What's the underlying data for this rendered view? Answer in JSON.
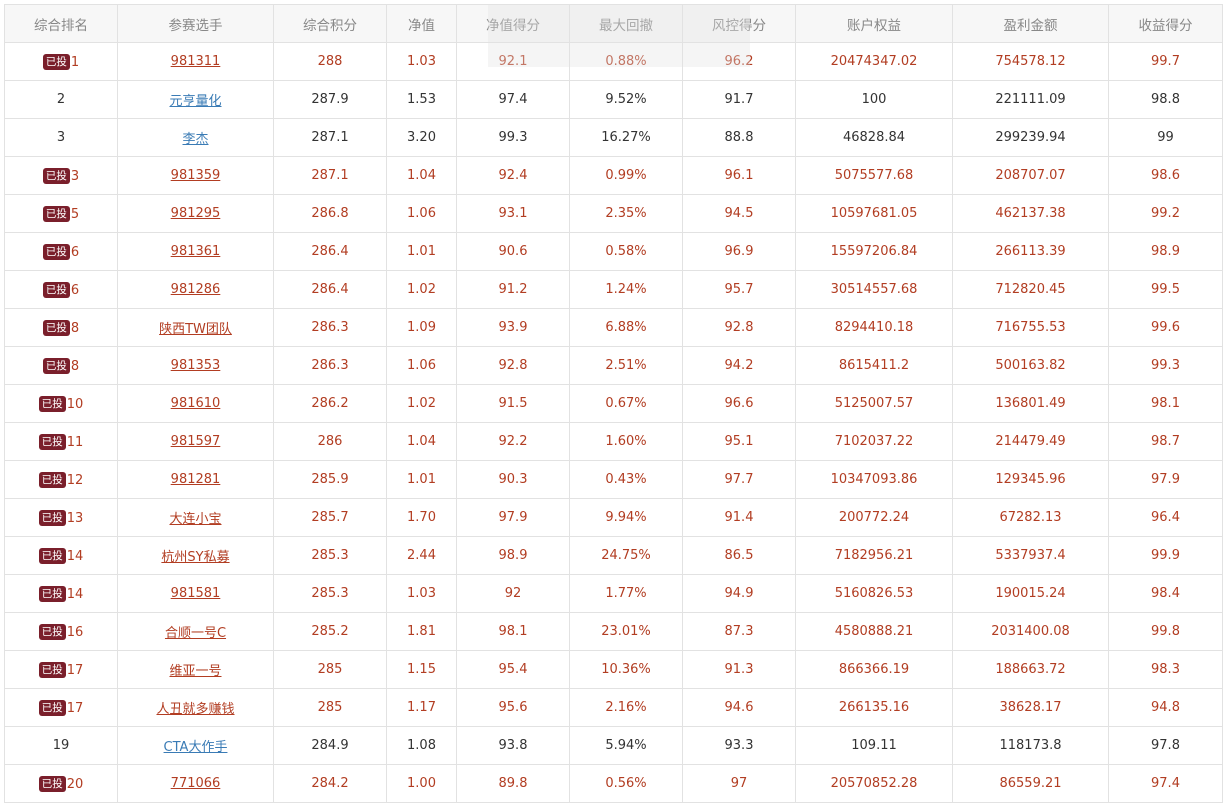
{
  "table": {
    "headers": [
      "综合排名",
      "参赛选手",
      "综合积分",
      "净值",
      "净值得分",
      "最大回撤",
      "风控得分",
      "账户权益",
      "盈利金额",
      "收益得分"
    ],
    "badge_label": "已投",
    "rows": [
      {
        "invested": true,
        "rank": "1",
        "player": "981311",
        "score": "288",
        "nav": "1.03",
        "nav_score": "92.1",
        "drawdown": "0.88%",
        "risk_score": "96.2",
        "equity": "20474347.02",
        "profit": "754578.12",
        "return_score": "99.7"
      },
      {
        "invested": false,
        "rank": "2",
        "player": "元亨量化",
        "score": "287.9",
        "nav": "1.53",
        "nav_score": "97.4",
        "drawdown": "9.52%",
        "risk_score": "91.7",
        "equity": "100",
        "profit": "221111.09",
        "return_score": "98.8"
      },
      {
        "invested": false,
        "rank": "3",
        "player": "李杰",
        "score": "287.1",
        "nav": "3.20",
        "nav_score": "99.3",
        "drawdown": "16.27%",
        "risk_score": "88.8",
        "equity": "46828.84",
        "profit": "299239.94",
        "return_score": "99"
      },
      {
        "invested": true,
        "rank": "3",
        "player": "981359",
        "score": "287.1",
        "nav": "1.04",
        "nav_score": "92.4",
        "drawdown": "0.99%",
        "risk_score": "96.1",
        "equity": "5075577.68",
        "profit": "208707.07",
        "return_score": "98.6"
      },
      {
        "invested": true,
        "rank": "5",
        "player": "981295",
        "score": "286.8",
        "nav": "1.06",
        "nav_score": "93.1",
        "drawdown": "2.35%",
        "risk_score": "94.5",
        "equity": "10597681.05",
        "profit": "462137.38",
        "return_score": "99.2"
      },
      {
        "invested": true,
        "rank": "6",
        "player": "981361",
        "score": "286.4",
        "nav": "1.01",
        "nav_score": "90.6",
        "drawdown": "0.58%",
        "risk_score": "96.9",
        "equity": "15597206.84",
        "profit": "266113.39",
        "return_score": "98.9"
      },
      {
        "invested": true,
        "rank": "6",
        "player": "981286",
        "score": "286.4",
        "nav": "1.02",
        "nav_score": "91.2",
        "drawdown": "1.24%",
        "risk_score": "95.7",
        "equity": "30514557.68",
        "profit": "712820.45",
        "return_score": "99.5"
      },
      {
        "invested": true,
        "rank": "8",
        "player": "陕西TW团队",
        "score": "286.3",
        "nav": "1.09",
        "nav_score": "93.9",
        "drawdown": "6.88%",
        "risk_score": "92.8",
        "equity": "8294410.18",
        "profit": "716755.53",
        "return_score": "99.6"
      },
      {
        "invested": true,
        "rank": "8",
        "player": "981353",
        "score": "286.3",
        "nav": "1.06",
        "nav_score": "92.8",
        "drawdown": "2.51%",
        "risk_score": "94.2",
        "equity": "8615411.2",
        "profit": "500163.82",
        "return_score": "99.3"
      },
      {
        "invested": true,
        "rank": "10",
        "player": "981610",
        "score": "286.2",
        "nav": "1.02",
        "nav_score": "91.5",
        "drawdown": "0.67%",
        "risk_score": "96.6",
        "equity": "5125007.57",
        "profit": "136801.49",
        "return_score": "98.1"
      },
      {
        "invested": true,
        "rank": "11",
        "player": "981597",
        "score": "286",
        "nav": "1.04",
        "nav_score": "92.2",
        "drawdown": "1.60%",
        "risk_score": "95.1",
        "equity": "7102037.22",
        "profit": "214479.49",
        "return_score": "98.7"
      },
      {
        "invested": true,
        "rank": "12",
        "player": "981281",
        "score": "285.9",
        "nav": "1.01",
        "nav_score": "90.3",
        "drawdown": "0.43%",
        "risk_score": "97.7",
        "equity": "10347093.86",
        "profit": "129345.96",
        "return_score": "97.9"
      },
      {
        "invested": true,
        "rank": "13",
        "player": "大连小宝",
        "score": "285.7",
        "nav": "1.70",
        "nav_score": "97.9",
        "drawdown": "9.94%",
        "risk_score": "91.4",
        "equity": "200772.24",
        "profit": "67282.13",
        "return_score": "96.4"
      },
      {
        "invested": true,
        "rank": "14",
        "player": "杭州SY私募",
        "score": "285.3",
        "nav": "2.44",
        "nav_score": "98.9",
        "drawdown": "24.75%",
        "risk_score": "86.5",
        "equity": "7182956.21",
        "profit": "5337937.4",
        "return_score": "99.9"
      },
      {
        "invested": true,
        "rank": "14",
        "player": "981581",
        "score": "285.3",
        "nav": "1.03",
        "nav_score": "92",
        "drawdown": "1.77%",
        "risk_score": "94.9",
        "equity": "5160826.53",
        "profit": "190015.24",
        "return_score": "98.4"
      },
      {
        "invested": true,
        "rank": "16",
        "player": "合顺一号C",
        "score": "285.2",
        "nav": "1.81",
        "nav_score": "98.1",
        "drawdown": "23.01%",
        "risk_score": "87.3",
        "equity": "4580888.21",
        "profit": "2031400.08",
        "return_score": "99.8"
      },
      {
        "invested": true,
        "rank": "17",
        "player": "维亚一号",
        "score": "285",
        "nav": "1.15",
        "nav_score": "95.4",
        "drawdown": "10.36%",
        "risk_score": "91.3",
        "equity": "866366.19",
        "profit": "188663.72",
        "return_score": "98.3"
      },
      {
        "invested": true,
        "rank": "17",
        "player": "人丑就多赚钱",
        "score": "285",
        "nav": "1.17",
        "nav_score": "95.6",
        "drawdown": "2.16%",
        "risk_score": "94.6",
        "equity": "266135.16",
        "profit": "38628.17",
        "return_score": "94.8"
      },
      {
        "invested": false,
        "rank": "19",
        "player": "CTA大作手",
        "score": "284.9",
        "nav": "1.08",
        "nav_score": "93.8",
        "drawdown": "5.94%",
        "risk_score": "93.3",
        "equity": "109.11",
        "profit": "118173.8",
        "return_score": "97.8"
      },
      {
        "invested": true,
        "rank": "20",
        "player": "771066",
        "score": "284.2",
        "nav": "1.00",
        "nav_score": "89.8",
        "drawdown": "0.56%",
        "risk_score": "97",
        "equity": "20570852.28",
        "profit": "86559.21",
        "return_score": "97.4"
      }
    ]
  }
}
